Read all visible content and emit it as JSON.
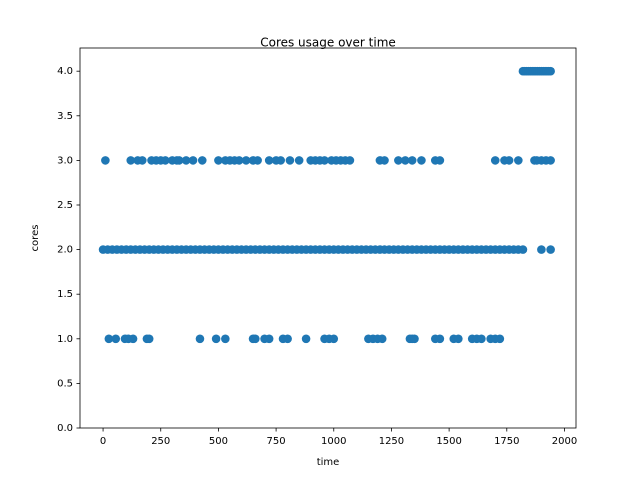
{
  "chart_data": {
    "type": "scatter",
    "title": "Cores usage over time",
    "x_label": "time",
    "y_label": "cores",
    "xlim": [
      -100,
      2050
    ],
    "ylim": [
      0,
      4.26
    ],
    "xticks": [
      0,
      250,
      500,
      750,
      1000,
      1250,
      1500,
      1750,
      2000
    ],
    "yticks": [
      {
        "value": 0,
        "label": "0.0"
      },
      0.5,
      {
        "value": 1,
        "label": "1.0"
      },
      1.5,
      {
        "value": 2,
        "label": "2.0"
      },
      2.5,
      {
        "value": 3,
        "label": "3.0"
      },
      3.5,
      {
        "value": 4,
        "label": "4.0"
      }
    ],
    "grid": false,
    "series": [
      {
        "color": "#1f77b4",
        "x": [
          0,
          20,
          40,
          60,
          80,
          100,
          120,
          140,
          160,
          180,
          200,
          220,
          240,
          260,
          280,
          300,
          320,
          340,
          360,
          380,
          400,
          420,
          440,
          460,
          480,
          500,
          520,
          540,
          560,
          580,
          600,
          620,
          640,
          660,
          680,
          700,
          720,
          740,
          760,
          780,
          800,
          820,
          840,
          860,
          880,
          900,
          920,
          940,
          960,
          980,
          1000,
          1020,
          1040,
          1060,
          1080,
          1100,
          1120,
          1140,
          1160,
          1180,
          1200,
          1220,
          1240,
          1260,
          1280,
          1300,
          1320,
          1340,
          1360,
          1380,
          1400,
          1420,
          1440,
          1460,
          1480,
          1500,
          1520,
          1540,
          1560,
          1580,
          1600,
          1620,
          1640,
          1660,
          1680,
          1700,
          1720,
          1740,
          1760,
          1780,
          1800,
          1820,
          1900,
          1940
        ],
        "values": [
          2,
          2,
          2,
          2,
          2,
          2,
          2,
          2,
          2,
          2,
          2,
          2,
          2,
          2,
          2,
          2,
          2,
          2,
          2,
          2,
          2,
          2,
          2,
          2,
          2,
          2,
          2,
          2,
          2,
          2,
          2,
          2,
          2,
          2,
          2,
          2,
          2,
          2,
          2,
          2,
          2,
          2,
          2,
          2,
          2,
          2,
          2,
          2,
          2,
          2,
          2,
          2,
          2,
          2,
          2,
          2,
          2,
          2,
          2,
          2,
          2,
          2,
          2,
          2,
          2,
          2,
          2,
          2,
          2,
          2,
          2,
          2,
          2,
          2,
          2,
          2,
          2,
          2,
          2,
          2,
          2,
          2,
          2,
          2,
          2,
          2,
          2,
          2,
          2,
          2,
          2,
          2,
          2,
          2
        ]
      },
      {
        "color": "#1f77b4",
        "x": [
          25,
          55,
          95,
          110,
          130,
          190,
          200,
          420,
          490,
          530,
          650,
          660,
          700,
          720,
          780,
          800,
          880,
          960,
          980,
          1000,
          1150,
          1170,
          1190,
          1210,
          1330,
          1340,
          1350,
          1440,
          1460,
          1520,
          1540,
          1600,
          1620,
          1640,
          1680,
          1700,
          1720
        ],
        "values": [
          1,
          1,
          1,
          1,
          1,
          1,
          1,
          1,
          1,
          1,
          1,
          1,
          1,
          1,
          1,
          1,
          1,
          1,
          1,
          1,
          1,
          1,
          1,
          1,
          1,
          1,
          1,
          1,
          1,
          1,
          1,
          1,
          1,
          1,
          1,
          1,
          1
        ]
      },
      {
        "color": "#1f77b4",
        "x": [
          10,
          120,
          150,
          170,
          210,
          230,
          250,
          270,
          300,
          320,
          330,
          360,
          390,
          430,
          500,
          530,
          550,
          570,
          590,
          620,
          650,
          670,
          720,
          750,
          770,
          810,
          850,
          900,
          920,
          940,
          960,
          990,
          1010,
          1030,
          1050,
          1070,
          1200,
          1220,
          1280,
          1310,
          1340,
          1380,
          1440,
          1460,
          1700,
          1740,
          1760,
          1800,
          1870,
          1880,
          1900,
          1920,
          1940
        ],
        "values": [
          3,
          3,
          3,
          3,
          3,
          3,
          3,
          3,
          3,
          3,
          3,
          3,
          3,
          3,
          3,
          3,
          3,
          3,
          3,
          3,
          3,
          3,
          3,
          3,
          3,
          3,
          3,
          3,
          3,
          3,
          3,
          3,
          3,
          3,
          3,
          3,
          3,
          3,
          3,
          3,
          3,
          3,
          3,
          3,
          3,
          3,
          3,
          3,
          3,
          3,
          3,
          3,
          3
        ]
      },
      {
        "color": "#1f77b4",
        "x": [
          1820,
          1828,
          1836,
          1844,
          1852,
          1860,
          1868,
          1876,
          1884,
          1892,
          1900,
          1908,
          1916,
          1924,
          1932,
          1940
        ],
        "values": [
          4,
          4,
          4,
          4,
          4,
          4,
          4,
          4,
          4,
          4,
          4,
          4,
          4,
          4,
          4,
          4
        ]
      }
    ]
  }
}
